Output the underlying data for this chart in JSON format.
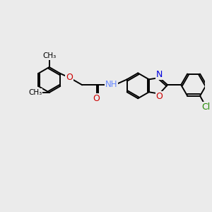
{
  "bg_color": "#ebebeb",
  "bond_color": "#000000",
  "bond_width": 1.4,
  "figsize": [
    3.0,
    3.0
  ],
  "dpi": 100,
  "xlim": [
    -1.5,
    10.5
  ],
  "ylim": [
    -1.0,
    7.5
  ]
}
